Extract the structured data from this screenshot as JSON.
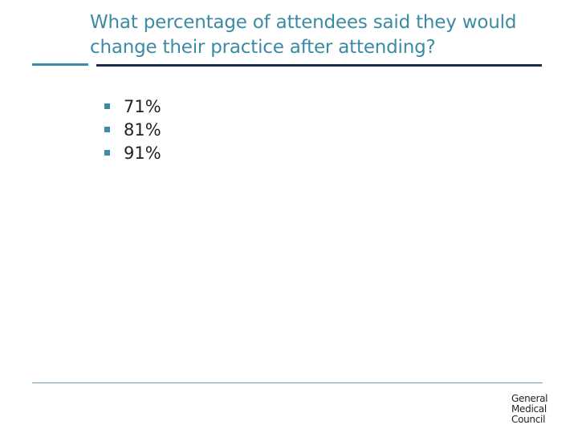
{
  "slide": {
    "title": "What percentage of attendees said they would change their practice after attending?",
    "options": [
      {
        "label": "71%"
      },
      {
        "label": "81%"
      },
      {
        "label": "91%"
      }
    ]
  },
  "logo": {
    "line1": "General",
    "line2": "Medical",
    "line3": "Council"
  },
  "colors": {
    "title": "#3a8ba3",
    "accent": "#3a8ba3",
    "rule": "#1b2d4a",
    "footer_rule": "#6aa8c2",
    "text": "#222222"
  }
}
